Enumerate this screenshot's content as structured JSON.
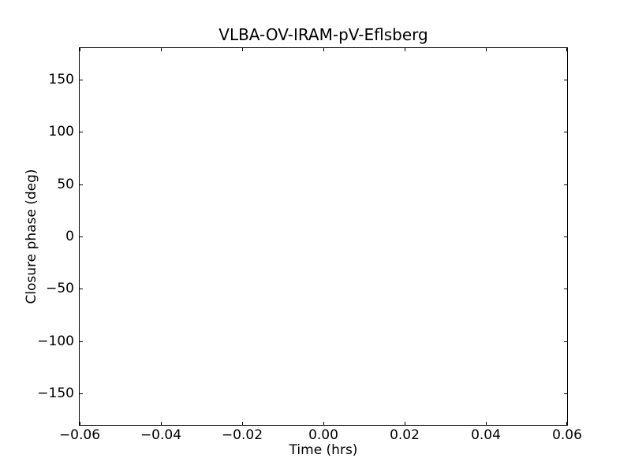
{
  "figure": {
    "background_color": "#ffffff",
    "text_color": "#000000",
    "spine_color": "#000000"
  },
  "chart_data": {
    "type": "scatter",
    "title": "VLBA-OV-IRAM-pV-Eflsberg",
    "xlabel": "Time (hrs)",
    "ylabel": "Closure phase (deg)",
    "xlim": [
      -0.06,
      0.06
    ],
    "ylim": [
      -180,
      180
    ],
    "xticks": [
      -0.06,
      -0.04,
      -0.02,
      0.0,
      0.02,
      0.04,
      0.06
    ],
    "xtick_labels": [
      "−0.06",
      "−0.04",
      "−0.02",
      "0.00",
      "0.02",
      "0.04",
      "0.06"
    ],
    "yticks": [
      -150,
      -100,
      -50,
      0,
      50,
      100,
      150
    ],
    "ytick_labels": [
      "−150",
      "−100",
      "−50",
      "0",
      "50",
      "100",
      "150"
    ],
    "series": [],
    "grid": false,
    "legend": false,
    "tick_direction": "in"
  }
}
